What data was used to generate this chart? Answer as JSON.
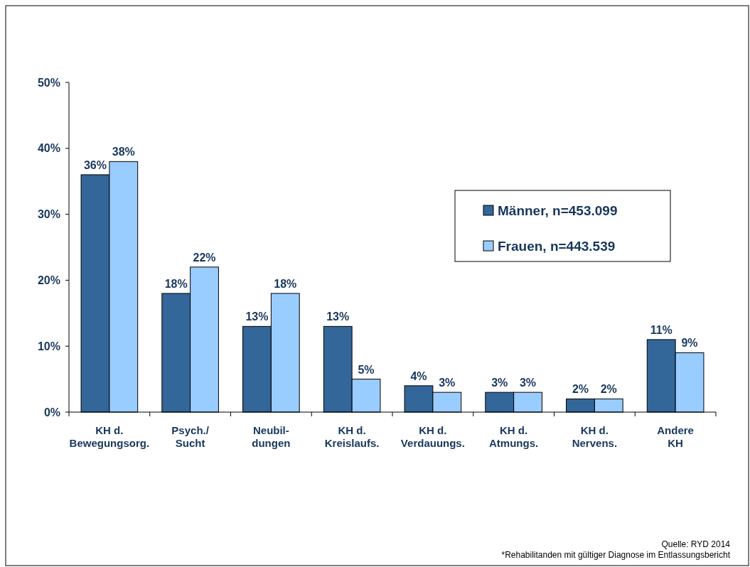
{
  "chart_data": {
    "type": "bar",
    "categories": [
      "KH d.\nBewegungsorg.",
      "Psych./\nSucht",
      "Neubil-\ndungen",
      "KH d.\nKreislaufs.",
      "KH d.\nVerdauungs.",
      "KH d.\nAtmungs.",
      "KH d.\nNervens.",
      "Andere\nKH"
    ],
    "series": [
      {
        "name": "Männer, n=453.099",
        "color": "#336699",
        "values": [
          36,
          18,
          13,
          13,
          4,
          3,
          2,
          11
        ],
        "value_labels": [
          "36%",
          "18%",
          "13%",
          "13%",
          "4%",
          "3%",
          "2%",
          "11%"
        ]
      },
      {
        "name": "Frauen, n=443.539",
        "color": "#99ccff",
        "values": [
          38,
          22,
          18,
          5,
          3,
          3,
          2,
          9
        ],
        "value_labels": [
          "38%",
          "22%",
          "18%",
          "5%",
          "3%",
          "3%",
          "2%",
          "9%"
        ]
      }
    ],
    "ylim": [
      0,
      50
    ],
    "yticks": [
      {
        "value": 0,
        "label": "0%"
      },
      {
        "value": 10,
        "label": "10%"
      },
      {
        "value": 20,
        "label": "20%"
      },
      {
        "value": 30,
        "label": "30%"
      },
      {
        "value": 40,
        "label": "40%"
      },
      {
        "value": 50,
        "label": "50%"
      }
    ],
    "grid": false,
    "legend": "right",
    "annotations": [
      "Quelle: RYD 2014",
      "*Rehabilitanden mit gültiger Diagnose im Entlassungsbericht"
    ]
  }
}
